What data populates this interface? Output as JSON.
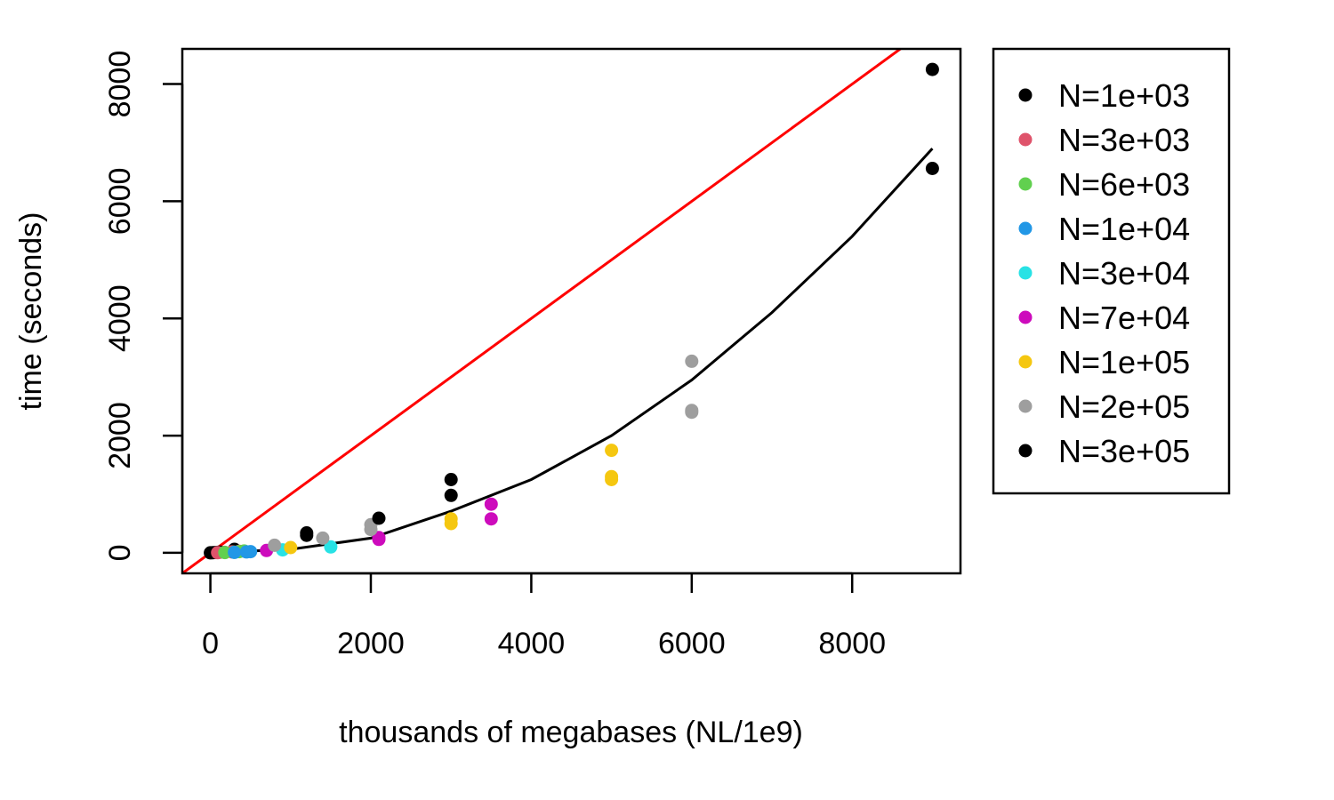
{
  "chart_data": {
    "type": "scatter",
    "title": "",
    "xlabel": "thousands of megabases (NL/1e9)",
    "ylabel": "time (seconds)",
    "xlim": [
      -350,
      9350
    ],
    "ylim": [
      -350,
      8600
    ],
    "xticks": [
      0,
      2000,
      4000,
      6000,
      8000
    ],
    "yticks": [
      0,
      2000,
      4000,
      6000,
      8000
    ],
    "xtick_labels": [
      "0",
      "2000",
      "4000",
      "6000",
      "8000"
    ],
    "ytick_labels": [
      "0",
      "2000",
      "4000",
      "6000",
      "8000"
    ],
    "grid": false,
    "legend_position": "right, outside plot",
    "series": [
      {
        "name": "N=1e+03",
        "color": "#000000",
        "points": [
          [
            0,
            0
          ],
          [
            30,
            2
          ],
          [
            60,
            5
          ],
          [
            90,
            8
          ],
          [
            120,
            12
          ],
          [
            300,
            60
          ],
          [
            9000,
            8250
          ],
          [
            9000,
            6560
          ]
        ]
      },
      {
        "name": "N=3e+03",
        "color": "#DF536B",
        "points": [
          [
            90,
            2
          ],
          [
            180,
            8
          ],
          [
            270,
            15
          ],
          [
            360,
            25
          ]
        ]
      },
      {
        "name": "N=6e+03",
        "color": "#61D04F",
        "points": [
          [
            180,
            5
          ],
          [
            300,
            10
          ],
          [
            360,
            20
          ],
          [
            420,
            30
          ]
        ]
      },
      {
        "name": "N=1e+04",
        "color": "#2297E6",
        "points": [
          [
            300,
            8
          ],
          [
            450,
            15
          ],
          [
            500,
            20
          ]
        ]
      },
      {
        "name": "N=3e+04",
        "color": "#28E2E5",
        "points": [
          [
            900,
            50
          ],
          [
            1500,
            100
          ]
        ]
      },
      {
        "name": "N=7e+04",
        "color": "#CD0BBC",
        "points": [
          [
            700,
            40
          ],
          [
            2100,
            230
          ],
          [
            2100,
            260
          ],
          [
            3500,
            580
          ],
          [
            3500,
            830
          ]
        ]
      },
      {
        "name": "N=1e+05",
        "color": "#F5C710",
        "points": [
          [
            1000,
            90
          ],
          [
            3000,
            500
          ],
          [
            3000,
            580
          ],
          [
            5000,
            1250
          ],
          [
            5000,
            1300
          ],
          [
            5000,
            1750
          ]
        ]
      },
      {
        "name": "N=2e+05",
        "color": "#9E9E9E",
        "points": [
          [
            800,
            130
          ],
          [
            1400,
            250
          ],
          [
            2000,
            400
          ],
          [
            2000,
            480
          ],
          [
            6000,
            2400
          ],
          [
            6000,
            2430
          ],
          [
            6000,
            3270
          ]
        ]
      },
      {
        "name": "N=3e+05",
        "color": "#000000",
        "points": [
          [
            1200,
            300
          ],
          [
            1200,
            340
          ],
          [
            2100,
            590
          ],
          [
            3000,
            980
          ],
          [
            3000,
            1250
          ]
        ]
      }
    ],
    "lines": [
      {
        "color": "#FF0000",
        "kind": "identity",
        "x": [
          -350,
          8650
        ],
        "y": [
          -350,
          8650
        ]
      },
      {
        "color": "#000000",
        "kind": "quadratic fit",
        "x": [
          0,
          1000,
          2000,
          3000,
          4000,
          5000,
          6000,
          7000,
          8000,
          9000
        ],
        "y": [
          0,
          60,
          250,
          710,
          1250,
          2000,
          2950,
          4100,
          5400,
          6900
        ]
      }
    ]
  }
}
